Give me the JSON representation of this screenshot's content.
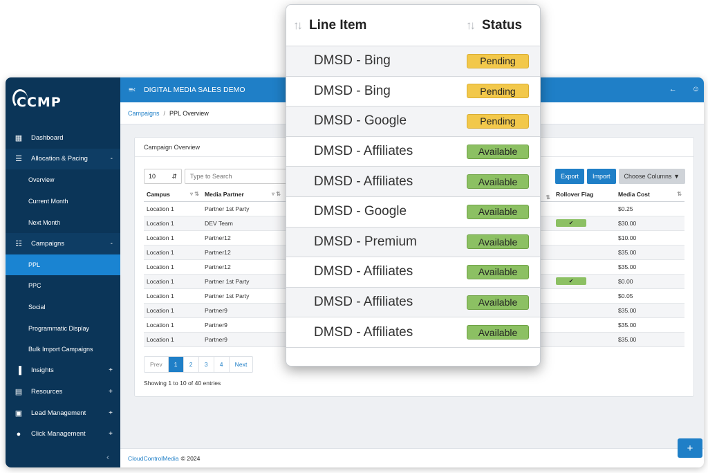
{
  "app": {
    "logo": "CCMP",
    "header_title": "DIGITAL MEDIA SALES DEMO",
    "breadcrumb": {
      "parent": "Campaigns",
      "separator": "/",
      "current": "PPL Overview"
    },
    "footer": {
      "brand": "CloudControlMedia",
      "copyright": "© 2024"
    }
  },
  "sidebar": {
    "items": [
      {
        "label": "Dashboard",
        "icon": "dashboard-icon",
        "type": "top"
      },
      {
        "label": "Allocation & Pacing",
        "icon": "sliders-icon",
        "type": "group",
        "toggle": "-"
      },
      {
        "label": "Overview",
        "type": "sub"
      },
      {
        "label": "Current Month",
        "type": "sub"
      },
      {
        "label": "Next Month",
        "type": "sub"
      },
      {
        "label": "Campaigns",
        "icon": "list-icon",
        "type": "group",
        "toggle": "-"
      },
      {
        "label": "PPL",
        "type": "sub",
        "active": true
      },
      {
        "label": "PPC",
        "type": "sub"
      },
      {
        "label": "Social",
        "type": "sub"
      },
      {
        "label": "Programmatic Display",
        "type": "sub"
      },
      {
        "label": "Bulk Import Campaigns",
        "type": "sub"
      },
      {
        "label": "Insights",
        "icon": "bar-chart-icon",
        "type": "top",
        "toggle": "+"
      },
      {
        "label": "Resources",
        "icon": "book-icon",
        "type": "top",
        "toggle": "+"
      },
      {
        "label": "Lead Management",
        "icon": "clipboard-icon",
        "type": "top",
        "toggle": "+"
      },
      {
        "label": "Click Management",
        "icon": "mouse-icon",
        "type": "top",
        "toggle": "+"
      }
    ]
  },
  "overview": {
    "title": "Campaign Overview",
    "page_size": "10",
    "search_placeholder": "Type to Search",
    "buttons": {
      "export": "Export",
      "import": "Import",
      "columns": "Choose Columns"
    },
    "columns": {
      "campus": "Campus",
      "media_partner": "Media Partner",
      "rollover": "Rollover Flag",
      "media_cost": "Media Cost"
    },
    "rows": [
      {
        "campus": "Location 1",
        "partner": "Partner 1st Party",
        "rollover": false,
        "cost": "$0.25"
      },
      {
        "campus": "Location 1",
        "partner": "DEV Team",
        "rollover": true,
        "cost": "$30.00"
      },
      {
        "campus": "Location 1",
        "partner": "Partner12",
        "rollover": false,
        "cost": "$10.00"
      },
      {
        "campus": "Location 1",
        "partner": "Partner12",
        "rollover": false,
        "cost": "$35.00"
      },
      {
        "campus": "Location 1",
        "partner": "Partner12",
        "rollover": false,
        "cost": "$35.00"
      },
      {
        "campus": "Location 1",
        "partner": "Partner 1st Party",
        "rollover": true,
        "cost": "$0.00"
      },
      {
        "campus": "Location 1",
        "partner": "Partner 1st Party",
        "rollover": false,
        "cost": "$0.05"
      },
      {
        "campus": "Location 1",
        "partner": "Partner9",
        "rollover": false,
        "cost": "$35.00"
      },
      {
        "campus": "Location 1",
        "partner": "Partner9",
        "rollover": false,
        "cost": "$35.00"
      },
      {
        "campus": "Location 1",
        "partner": "Partner9",
        "rollover": false,
        "cost": "$35.00"
      }
    ],
    "pagination": {
      "prev": "Prev",
      "pages": [
        "1",
        "2",
        "3",
        "4"
      ],
      "current": "1",
      "next": "Next"
    },
    "entries_text": "Showing 1 to 10 of 40 entries"
  },
  "popup": {
    "columns": {
      "line_item": "Line Item",
      "status": "Status"
    },
    "rows": [
      {
        "line_item": "DMSD - Bing",
        "status": "Pending"
      },
      {
        "line_item": "DMSD - Bing",
        "status": "Pending"
      },
      {
        "line_item": "DMSD - Google",
        "status": "Pending"
      },
      {
        "line_item": "DMSD - Affiliates",
        "status": "Available"
      },
      {
        "line_item": "DMSD - Affiliates",
        "status": "Available"
      },
      {
        "line_item": "DMSD - Google",
        "status": "Available"
      },
      {
        "line_item": "DMSD - Premium",
        "status": "Available"
      },
      {
        "line_item": "DMSD - Affiliates",
        "status": "Available"
      },
      {
        "line_item": "DMSD - Affiliates",
        "status": "Available"
      },
      {
        "line_item": "DMSD - Affiliates",
        "status": "Available"
      }
    ]
  },
  "colors": {
    "sidebar": "#0b3558",
    "accent": "#1f7fc7",
    "pending": "#f2c84b",
    "available": "#8cc063"
  }
}
